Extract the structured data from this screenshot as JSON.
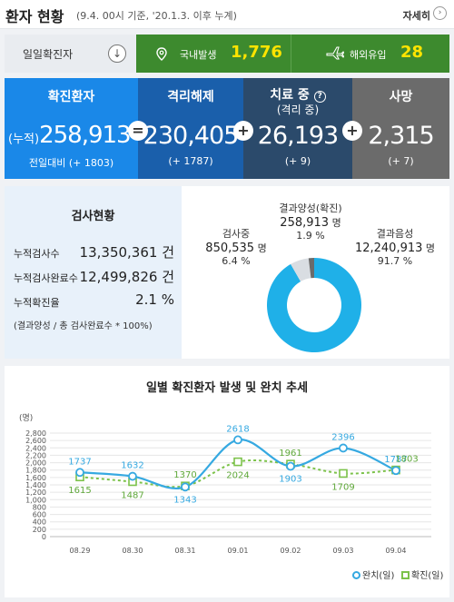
{
  "header": {
    "title": "환자 현황",
    "subtitle": "(9.4. 00시 기준, '20.1.3. 이후 누계)",
    "more_label": "자세히",
    "more_icon": "chevron-right-icon"
  },
  "daily": {
    "label": "일일확진자",
    "toggle_icon": "arrow-down-icon",
    "domestic_label": "국내발생",
    "domestic_value": "1,776",
    "domestic_icon": "map-pin-icon",
    "overseas_label": "해외유입",
    "overseas_value": "28",
    "overseas_icon": "airplane-icon"
  },
  "stats": {
    "confirmed": {
      "title": "확진환자",
      "prefix": "(누적)",
      "value": "258,913",
      "footer": "전일대비 (+ 1803)",
      "color": "#1a88e8"
    },
    "released": {
      "title": "격리해제",
      "value": "230,405",
      "footer": "(+ 1787)",
      "color": "#1a5fab"
    },
    "treatment": {
      "title": "치료 중",
      "title_sub": "(격리 중)",
      "help_icon": "?",
      "value": "26,193",
      "footer": "(+ 9)",
      "color": "#2b4a6b"
    },
    "death": {
      "title": "사망",
      "value": "2,315",
      "footer": "(+ 7)",
      "color": "#6b6b6b"
    },
    "op_equals": "=",
    "op_plus1": "+",
    "op_plus2": "+"
  },
  "tests": {
    "title": "검사현황",
    "rows": [
      {
        "label": "누적검사수",
        "value": "13,350,361 건"
      },
      {
        "label": "누적검사완료수",
        "value": "12,499,826 건"
      },
      {
        "label": "누적확진율",
        "value": "2.1 %"
      }
    ],
    "note": "(결과양성 / 총 검사완료수 * 100%)",
    "donut": {
      "testing_label": "검사중",
      "testing_value": "850,535",
      "testing_unit": "명",
      "testing_pct": "6.4 %",
      "positive_label": "결과양성(확진)",
      "positive_value": "258,913",
      "positive_unit": "명",
      "positive_pct": "1.9 %",
      "negative_label": "결과음성",
      "negative_value": "12,240,913",
      "negative_unit": "명",
      "negative_pct": "91.7 %",
      "colors": {
        "negative": "#1fb0e8",
        "testing": "#d9dde2",
        "positive": "#6b6b6b"
      }
    }
  },
  "chart_data": {
    "type": "line",
    "title": "일별 확진환자 발생 및 완치 추세",
    "ylabel": "(명)",
    "categories": [
      "08.29",
      "08.30",
      "08.31",
      "09.01",
      "09.02",
      "09.03",
      "09.04"
    ],
    "yticks": [
      "0",
      "200",
      "400",
      "600",
      "800",
      "1,000",
      "1,200",
      "1,400",
      "1,600",
      "1,800",
      "2,000",
      "2,200",
      "2,400",
      "2,600",
      "2,800"
    ],
    "ylim": [
      0,
      2800
    ],
    "series": [
      {
        "name": "완치(일)",
        "values": [
          1737,
          1632,
          1343,
          2618,
          1903,
          2396,
          1787
        ],
        "labels": [
          "1737",
          "1632",
          "1343",
          "2618",
          "1903",
          "2396",
          "1787"
        ],
        "color": "#36a9e1"
      },
      {
        "name": "확진(일)",
        "values": [
          1615,
          1487,
          1370,
          2024,
          1961,
          1709,
          1803
        ],
        "labels": [
          "1615",
          "1487",
          "1370",
          "2024",
          "1961",
          "1709",
          "1803"
        ],
        "color": "#7cc24a"
      }
    ],
    "legend_position": "bottom-right"
  }
}
